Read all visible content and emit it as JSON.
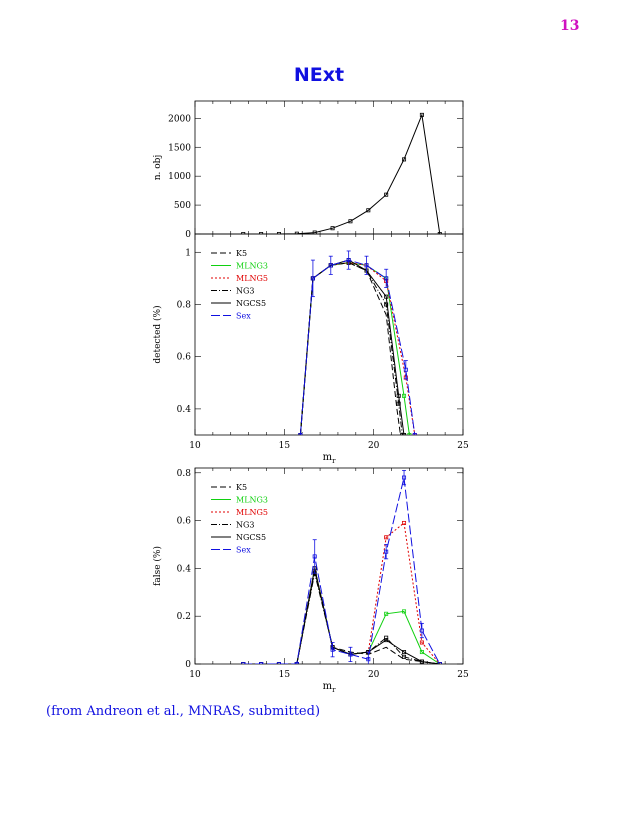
{
  "page": {
    "number": "13",
    "title": "NExt",
    "caption": "(from Andreon et al., MNRAS, submitted)"
  },
  "colors": {
    "K5": "#000000",
    "MLNG3": "#10d010",
    "MLNG5": "#e00000",
    "NG3": "#000000",
    "NGCS5": "#000000",
    "Sex": "#1010e0",
    "title": "#1010e0",
    "page_number": "#d010c0"
  },
  "chart_data": [
    {
      "type": "line",
      "ylabel": "n. obj",
      "xlim": [
        10,
        25
      ],
      "ylim": [
        0,
        2300
      ],
      "yticks": [
        0,
        500,
        1000,
        1500,
        2000
      ],
      "series": [
        {
          "x": [
            12.7,
            13.7,
            14.7,
            15.7,
            16.7,
            17.7,
            18.7,
            19.7,
            20.7,
            21.7,
            22.7,
            23.7
          ],
          "y": [
            0,
            0,
            0,
            5,
            25,
            100,
            220,
            410,
            680,
            1290,
            2060,
            0
          ]
        }
      ]
    },
    {
      "type": "line",
      "xlabel": "m_r",
      "ylabel": "detected (%)",
      "xlim": [
        10,
        25
      ],
      "ylim": [
        0.3,
        1.07
      ],
      "xticks": [
        10,
        15,
        20,
        25
      ],
      "yticks": [
        0.4,
        0.6,
        0.8,
        1
      ],
      "legend_position": "top-left",
      "series": [
        {
          "name": "K5",
          "x": [
            15.9,
            16.6,
            17.6,
            18.6,
            19.6,
            20.7,
            21.3,
            21.5
          ],
          "y": [
            0.3,
            0.9,
            0.95,
            0.96,
            0.93,
            0.76,
            0.4,
            0.3
          ]
        },
        {
          "name": "MLNG3",
          "x": [
            15.9,
            16.6,
            17.6,
            18.6,
            19.6,
            20.7,
            21.7,
            22.0
          ],
          "y": [
            0.3,
            0.9,
            0.95,
            0.96,
            0.95,
            0.9,
            0.45,
            0.3
          ]
        },
        {
          "name": "MLNG5",
          "x": [
            15.9,
            16.6,
            17.6,
            18.6,
            19.6,
            20.7,
            21.8,
            22.3
          ],
          "y": [
            0.3,
            0.9,
            0.95,
            0.96,
            0.95,
            0.89,
            0.52,
            0.3
          ]
        },
        {
          "name": "NG3",
          "x": [
            15.9,
            16.6,
            17.6,
            18.6,
            19.6,
            20.7,
            21.4,
            21.6
          ],
          "y": [
            0.3,
            0.9,
            0.95,
            0.96,
            0.93,
            0.8,
            0.42,
            0.3
          ]
        },
        {
          "name": "NGCS5",
          "x": [
            15.9,
            16.6,
            17.6,
            18.6,
            19.6,
            20.7,
            21.4,
            21.7
          ],
          "y": [
            0.3,
            0.9,
            0.95,
            0.97,
            0.93,
            0.83,
            0.45,
            0.3
          ]
        },
        {
          "name": "Sex",
          "x": [
            15.9,
            16.6,
            17.6,
            18.6,
            19.6,
            20.7,
            21.8,
            22.3
          ],
          "y": [
            0.3,
            0.9,
            0.95,
            0.97,
            0.95,
            0.9,
            0.55,
            0.3
          ]
        }
      ]
    },
    {
      "type": "line",
      "xlabel": "m_r",
      "ylabel": "false (%)",
      "xlim": [
        10,
        25
      ],
      "ylim": [
        0,
        0.82
      ],
      "xticks": [
        10,
        15,
        20,
        25
      ],
      "yticks": [
        0,
        0.2,
        0.4,
        0.6,
        0.8
      ],
      "legend_position": "top-left",
      "series": [
        {
          "name": "K5",
          "x": [
            12.7,
            13.7,
            14.7,
            15.7,
            16.7,
            17.7,
            18.7,
            19.7,
            20.7,
            21.7,
            22.7,
            23.7
          ],
          "y": [
            0,
            0,
            0,
            0,
            0.39,
            0.07,
            0.05,
            0.04,
            0.07,
            0.02,
            0.01,
            0
          ]
        },
        {
          "name": "MLNG3",
          "x": [
            12.7,
            13.7,
            14.7,
            15.7,
            16.7,
            17.7,
            18.7,
            19.7,
            20.7,
            21.7,
            22.7,
            23.7
          ],
          "y": [
            0,
            0,
            0,
            0,
            0.4,
            0.07,
            0.04,
            0.05,
            0.21,
            0.22,
            0.05,
            0
          ]
        },
        {
          "name": "MLNG5",
          "x": [
            12.7,
            13.7,
            14.7,
            15.7,
            16.7,
            17.7,
            18.7,
            19.7,
            20.7,
            21.7,
            22.7,
            23.7
          ],
          "y": [
            0,
            0,
            0,
            0,
            0.4,
            0.07,
            0.04,
            0.05,
            0.53,
            0.59,
            0.09,
            0
          ]
        },
        {
          "name": "NG3",
          "x": [
            12.7,
            13.7,
            14.7,
            15.7,
            16.7,
            17.7,
            18.7,
            19.7,
            20.7,
            21.7,
            22.7,
            23.7
          ],
          "y": [
            0,
            0,
            0,
            0,
            0.38,
            0.07,
            0.04,
            0.05,
            0.11,
            0.03,
            0.01,
            0
          ]
        },
        {
          "name": "NGCS5",
          "x": [
            12.7,
            13.7,
            14.7,
            15.7,
            16.7,
            17.7,
            18.7,
            19.7,
            20.7,
            21.7,
            22.7,
            23.7
          ],
          "y": [
            0,
            0,
            0,
            0,
            0.4,
            0.07,
            0.04,
            0.05,
            0.1,
            0.05,
            0.01,
            0
          ]
        },
        {
          "name": "Sex",
          "x": [
            12.7,
            13.7,
            14.7,
            15.7,
            16.7,
            17.7,
            18.7,
            19.7,
            20.7,
            21.7,
            22.7,
            23.7
          ],
          "y": [
            0,
            0,
            0,
            0,
            0.45,
            0.06,
            0.04,
            0.02,
            0.47,
            0.78,
            0.14,
            0
          ]
        }
      ]
    }
  ]
}
